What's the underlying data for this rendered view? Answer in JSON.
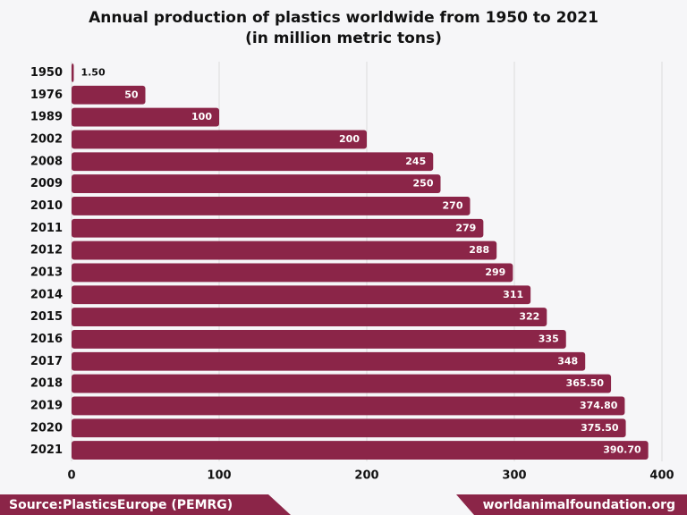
{
  "chart_data": {
    "type": "bar",
    "orientation": "horizontal",
    "title": "Annual production of plastics worldwide from 1950 to 2021",
    "subtitle": "(in million metric tons)",
    "categories": [
      "1950",
      "1976",
      "1989",
      "2002",
      "2008",
      "2009",
      "2010",
      "2011",
      "2012",
      "2013",
      "2014",
      "2015",
      "2016",
      "2017",
      "2018",
      "2019",
      "2020",
      "2021"
    ],
    "values": [
      1.5,
      50,
      100,
      200,
      245,
      250,
      270,
      279,
      288,
      299,
      311,
      322,
      335,
      348,
      365.5,
      374.8,
      375.5,
      390.7
    ],
    "value_labels": [
      "1.50",
      "50",
      "100",
      "200",
      "245",
      "250",
      "270",
      "279",
      "288",
      "299",
      "311",
      "322",
      "335",
      "348",
      "365.50",
      "374.80",
      "375.50",
      "390.70"
    ],
    "color": "#8b2548",
    "xlim": [
      0,
      400
    ],
    "xticks": [
      0,
      100,
      200,
      300,
      400
    ],
    "grid": true,
    "source": "Source:PlasticsEurope (PEMRG)",
    "website": "worldanimalfoundation.org"
  }
}
